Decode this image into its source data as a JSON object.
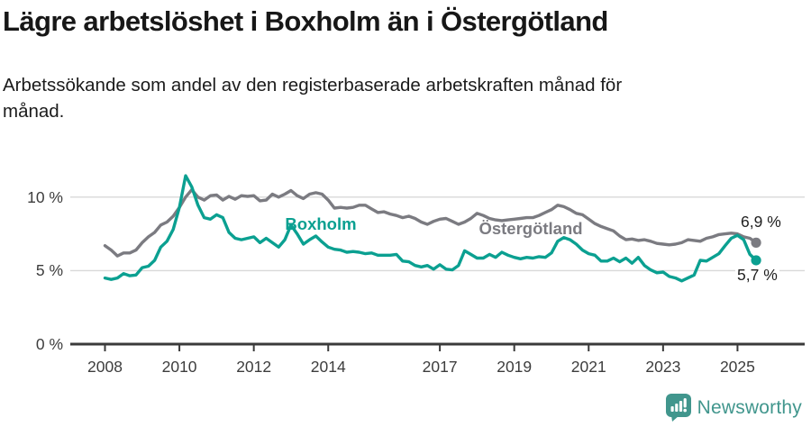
{
  "chart_data": {
    "type": "line",
    "title": "Lägre arbetslöshet i Boxholm än i Östergötland",
    "subtitle_lines": [
      "Arbetssökande som andel av den registerbaserade arbetskraften månad för",
      "månad."
    ],
    "unit": "%",
    "x_start_year": 2008,
    "x_step_months": 2,
    "x_ticks": [
      2008,
      2010,
      2012,
      2014,
      2017,
      2019,
      2021,
      2023,
      2025
    ],
    "y_ticks": [
      {
        "label": "10 %",
        "value": 10
      },
      {
        "label": "5 %",
        "value": 5
      },
      {
        "label": "0 %",
        "value": 0
      }
    ],
    "ylim": [
      0,
      12
    ],
    "grid": "horizontal",
    "legend_position": "inline-labels",
    "colors": {
      "boxholm": "#0ba091",
      "ostergotland": "#7b7b81",
      "axis": "#3a3a3a",
      "gridline": "#d8d8d8"
    },
    "series": [
      {
        "name": "Östergötland",
        "color": "#7b7b81",
        "end_label": "6,9 %",
        "end_value": 6.9,
        "values": [
          6.7,
          6.4,
          6.0,
          6.2,
          6.2,
          6.4,
          6.9,
          7.3,
          7.6,
          8.1,
          8.3,
          8.7,
          9.3,
          10.0,
          10.5,
          10.0,
          9.8,
          10.1,
          10.15,
          9.8,
          10.05,
          9.85,
          10.1,
          10.05,
          10.1,
          9.75,
          9.8,
          10.2,
          10.0,
          10.2,
          10.45,
          10.1,
          9.9,
          10.2,
          10.3,
          10.2,
          9.8,
          9.25,
          9.3,
          9.25,
          9.3,
          9.45,
          9.45,
          9.2,
          8.95,
          9.0,
          8.85,
          8.75,
          8.6,
          8.7,
          8.55,
          8.3,
          8.15,
          8.35,
          8.5,
          8.55,
          8.35,
          8.15,
          8.3,
          8.55,
          8.9,
          8.75,
          8.55,
          8.45,
          8.4,
          8.45,
          8.5,
          8.55,
          8.6,
          8.6,
          8.75,
          8.95,
          9.15,
          9.45,
          9.35,
          9.15,
          8.9,
          8.8,
          8.5,
          8.2,
          8.0,
          7.85,
          7.7,
          7.35,
          7.1,
          7.15,
          7.05,
          7.1,
          7.0,
          6.85,
          6.8,
          6.75,
          6.8,
          6.9,
          7.1,
          7.05,
          7.0,
          7.2,
          7.3,
          7.45,
          7.5,
          7.55,
          7.5,
          7.3,
          7.2,
          6.9
        ]
      },
      {
        "name": "Boxholm",
        "color": "#0ba091",
        "end_label": "5,7 %",
        "end_value": 5.7,
        "values": [
          4.5,
          4.4,
          4.5,
          4.8,
          4.65,
          4.7,
          5.2,
          5.3,
          5.7,
          6.6,
          7.0,
          7.8,
          9.3,
          11.45,
          10.7,
          9.45,
          8.6,
          8.5,
          8.8,
          8.6,
          7.6,
          7.2,
          7.1,
          7.2,
          7.3,
          6.9,
          7.2,
          6.9,
          6.6,
          7.1,
          8.1,
          7.5,
          6.8,
          7.1,
          7.35,
          6.95,
          6.6,
          6.45,
          6.4,
          6.25,
          6.3,
          6.25,
          6.15,
          6.2,
          6.05,
          6.05,
          6.05,
          6.1,
          5.65,
          5.6,
          5.35,
          5.25,
          5.35,
          5.1,
          5.4,
          5.1,
          5.05,
          5.35,
          6.35,
          6.1,
          5.85,
          5.85,
          6.1,
          5.9,
          6.25,
          6.05,
          5.9,
          5.8,
          5.9,
          5.85,
          5.95,
          5.9,
          6.2,
          7.0,
          7.25,
          7.1,
          6.8,
          6.4,
          6.15,
          6.05,
          5.65,
          5.65,
          5.85,
          5.6,
          5.85,
          5.5,
          5.9,
          5.35,
          5.05,
          4.85,
          4.9,
          4.6,
          4.5,
          4.3,
          4.5,
          4.7,
          5.7,
          5.65,
          5.9,
          6.15,
          6.7,
          7.2,
          7.4,
          7.1,
          6.1,
          5.7
        ]
      }
    ]
  },
  "footer": {
    "brand": "Newsworthy"
  }
}
